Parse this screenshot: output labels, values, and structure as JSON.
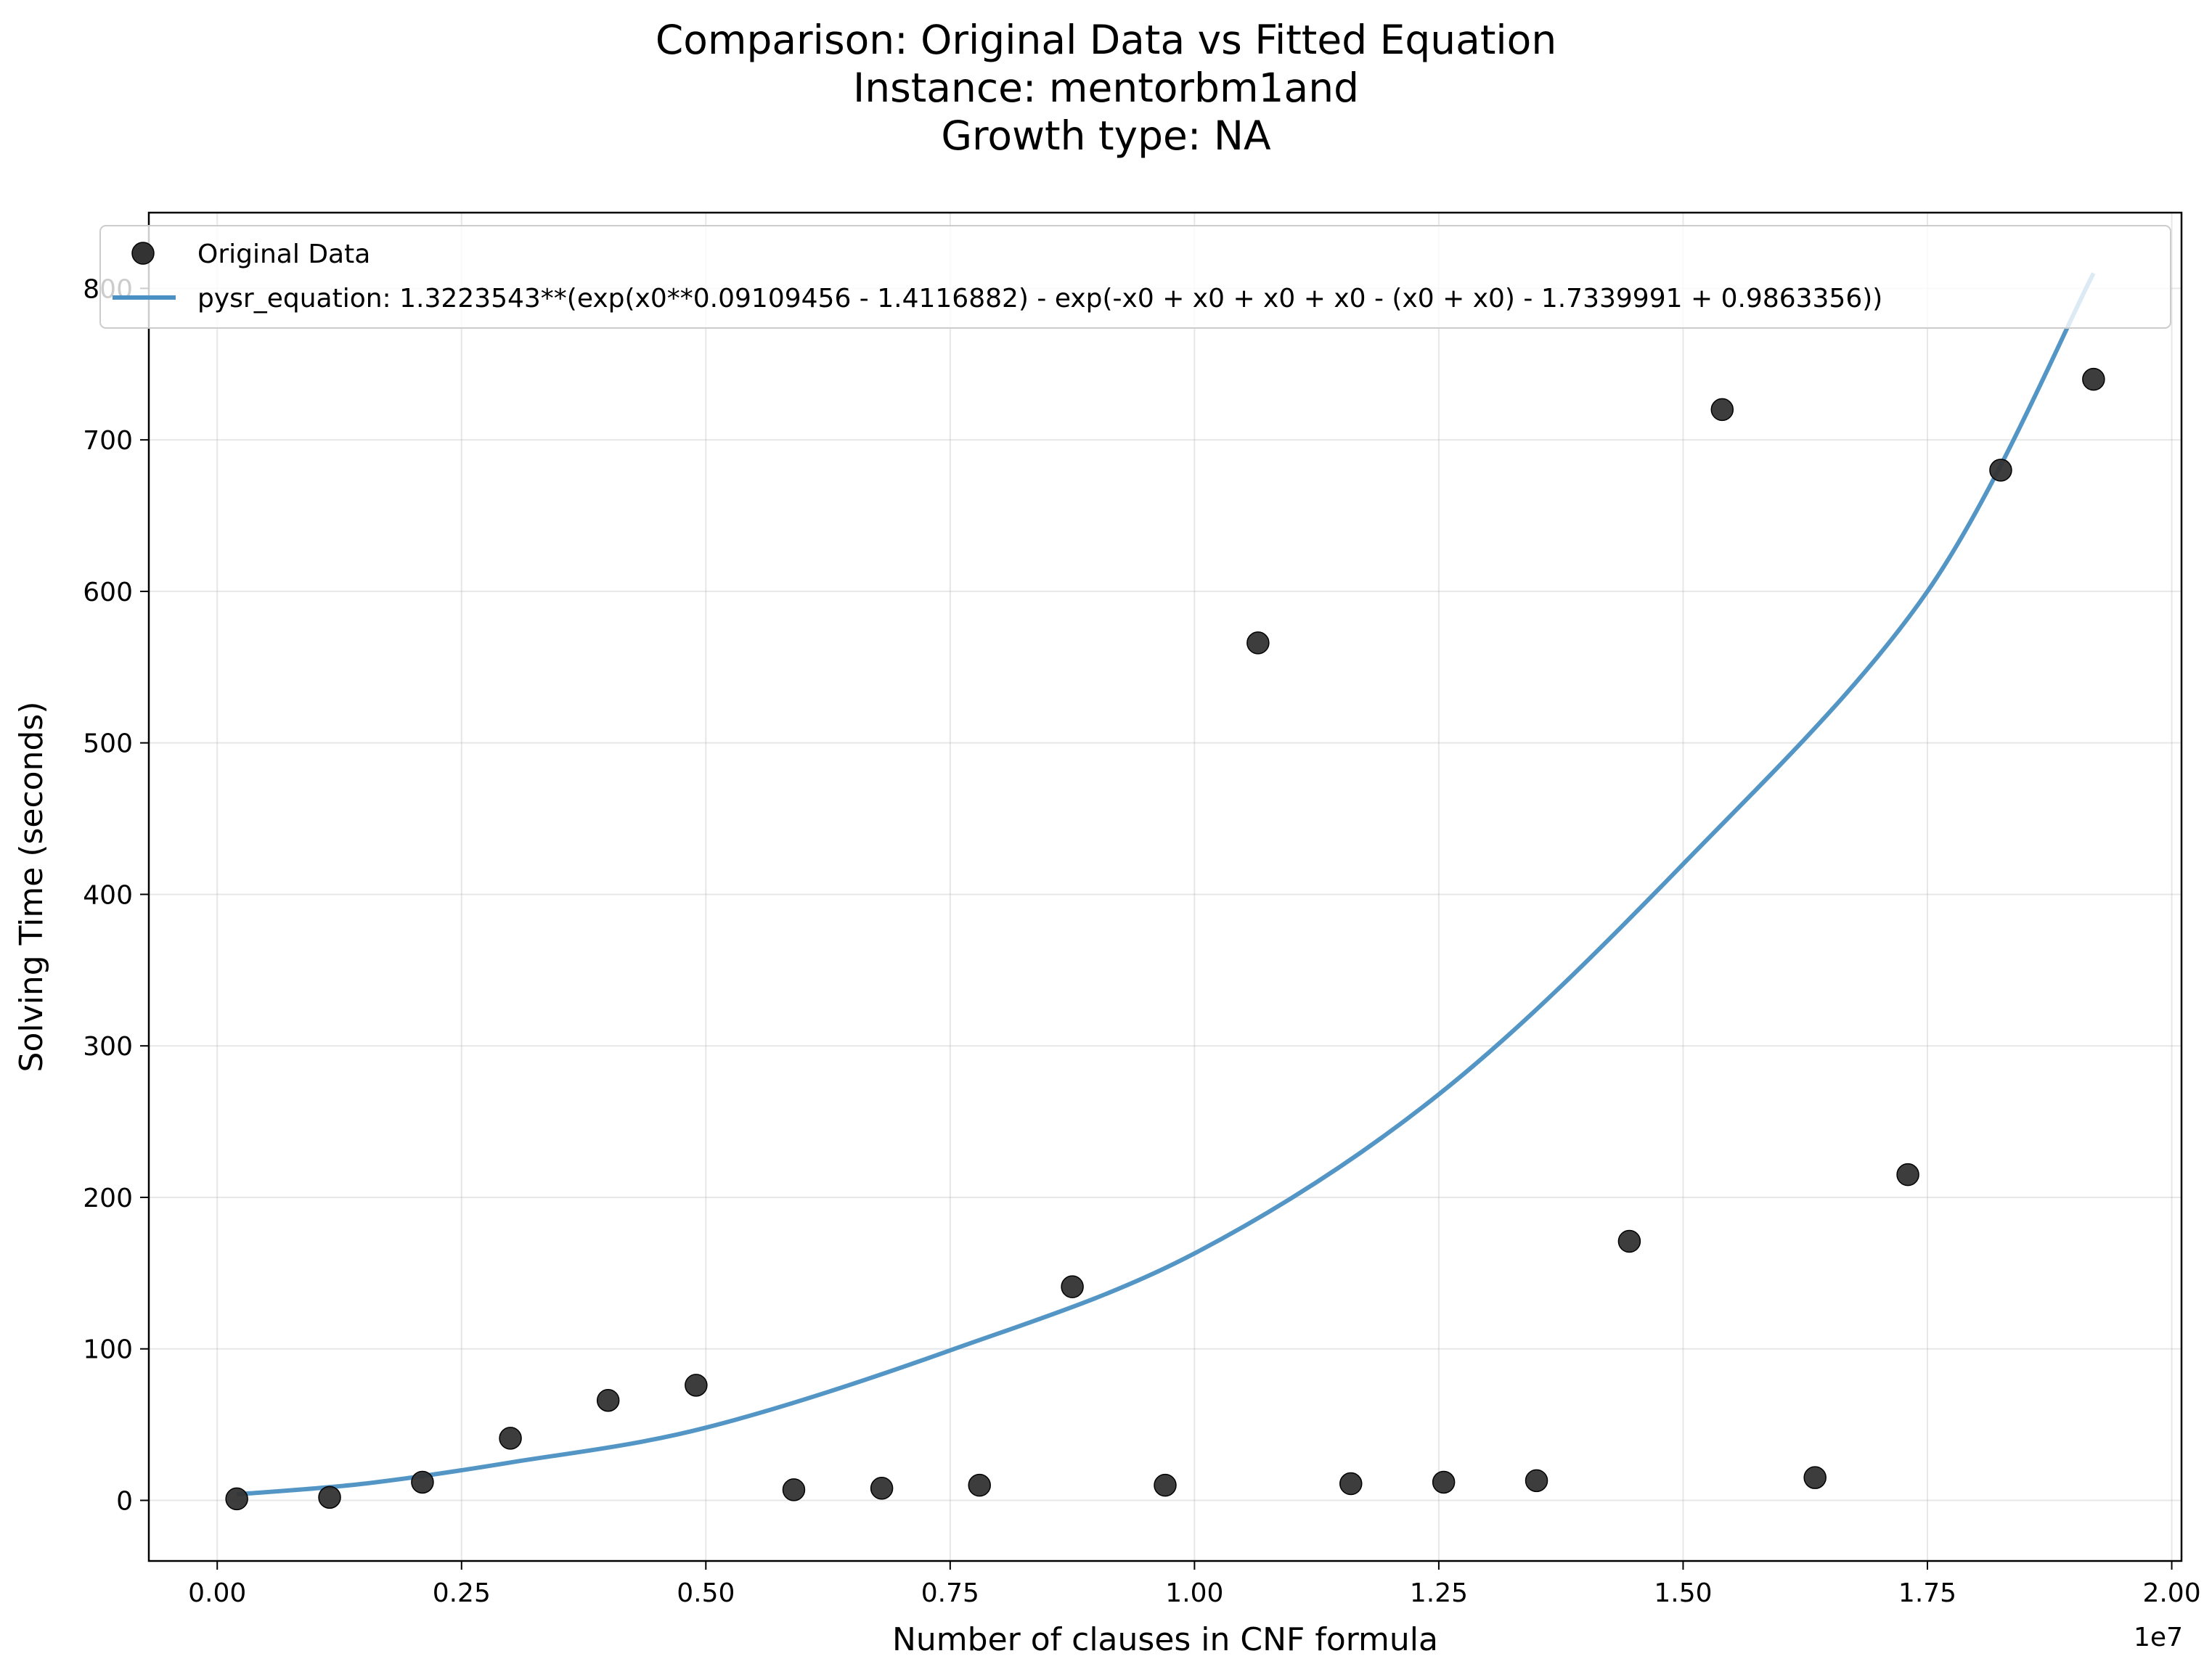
{
  "chart_data": {
    "type": "scatter",
    "title_lines": [
      "Comparison: Original Data vs Fitted Equation",
      "Instance: mentorbm1and",
      "Growth type: NA"
    ],
    "xlabel": "Number of clauses in CNF formula",
    "ylabel": "Solving Time (seconds)",
    "x_offset_text": "1e7",
    "xlim": [
      -0.07,
      2.01
    ],
    "ylim": [
      -40,
      850
    ],
    "x_ticks": [
      0.0,
      0.25,
      0.5,
      0.75,
      1.0,
      1.25,
      1.5,
      1.75,
      2.0
    ],
    "x_tick_labels": [
      "0.00",
      "0.25",
      "0.50",
      "0.75",
      "1.00",
      "1.25",
      "1.50",
      "1.75",
      "2.00"
    ],
    "y_ticks": [
      0,
      100,
      200,
      300,
      400,
      500,
      600,
      700,
      800
    ],
    "y_tick_labels": [
      "0",
      "100",
      "200",
      "300",
      "400",
      "500",
      "600",
      "700",
      "800"
    ],
    "grid": true,
    "legend_position": "top-left",
    "series": [
      {
        "name": "Original Data",
        "kind": "scatter",
        "color": "#333333",
        "points": [
          [
            0.02,
            1
          ],
          [
            0.115,
            2
          ],
          [
            0.21,
            12
          ],
          [
            0.3,
            41
          ],
          [
            0.4,
            66
          ],
          [
            0.49,
            76
          ],
          [
            0.59,
            7
          ],
          [
            0.68,
            8
          ],
          [
            0.78,
            10
          ],
          [
            0.875,
            141
          ],
          [
            0.97,
            10
          ],
          [
            1.065,
            566
          ],
          [
            1.16,
            11
          ],
          [
            1.255,
            12
          ],
          [
            1.35,
            13
          ],
          [
            1.445,
            171
          ],
          [
            1.54,
            720
          ],
          [
            1.635,
            15
          ],
          [
            1.73,
            215
          ],
          [
            1.825,
            680
          ],
          [
            1.92,
            740
          ]
        ]
      },
      {
        "name": "pysr_equation: 1.3223543**(exp(x0**0.09109456 - 1.4116882) - exp(-x0 + x0 + x0 + x0 - (x0 + x0) - 1.7339991 + 0.9863356))",
        "kind": "line",
        "color": "#4a90c2",
        "points": [
          [
            0.02,
            4
          ],
          [
            0.15,
            11
          ],
          [
            0.3,
            25
          ],
          [
            0.5,
            48
          ],
          [
            0.75,
            99
          ],
          [
            1.0,
            163
          ],
          [
            1.25,
            268
          ],
          [
            1.5,
            420
          ],
          [
            1.75,
            600
          ],
          [
            1.92,
            810
          ]
        ]
      }
    ]
  }
}
